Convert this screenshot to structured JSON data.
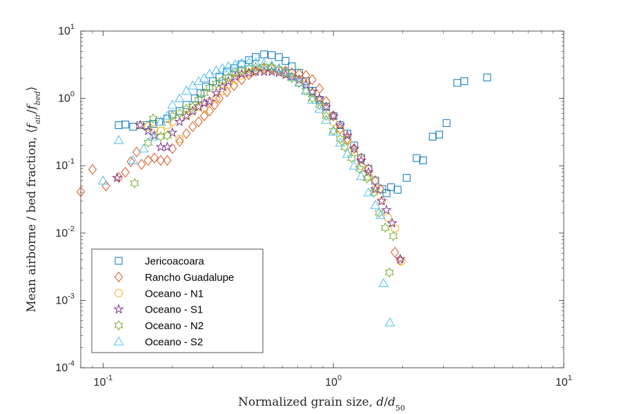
{
  "chart_data": {
    "type": "scatter",
    "title": "",
    "xlabel": "Normalized grain size, d/d50",
    "ylabel": "Mean airborne / bed fraction, ⟨f_air/f_bed⟩",
    "xscale": "log",
    "yscale": "log",
    "xlim": [
      0.08,
      10
    ],
    "ylim": [
      0.0001,
      10
    ],
    "xticks": [
      {
        "value": 0.1,
        "mantissa": "10",
        "exp": "-1"
      },
      {
        "value": 1,
        "mantissa": "10",
        "exp": "0"
      },
      {
        "value": 10,
        "mantissa": "10",
        "exp": "1"
      }
    ],
    "yticks": [
      {
        "value": 0.0001,
        "mantissa": "10",
        "exp": "-4"
      },
      {
        "value": 0.001,
        "mantissa": "10",
        "exp": "-3"
      },
      {
        "value": 0.01,
        "mantissa": "10",
        "exp": "-2"
      },
      {
        "value": 0.1,
        "mantissa": "10",
        "exp": "-1"
      },
      {
        "value": 1,
        "mantissa": "10",
        "exp": "0"
      },
      {
        "value": 10,
        "mantissa": "10",
        "exp": "1"
      }
    ],
    "grid": false,
    "legend_position": "bottom-left",
    "series": [
      {
        "name": "Jericoacoara",
        "marker": "square",
        "color": "#0072BD",
        "points": [
          [
            0.117,
            0.4
          ],
          [
            0.125,
            0.41
          ],
          [
            0.135,
            0.38
          ],
          [
            0.145,
            0.4
          ],
          [
            0.155,
            0.4
          ],
          [
            0.165,
            0.42
          ],
          [
            0.175,
            0.45
          ],
          [
            0.19,
            0.5
          ],
          [
            0.2,
            0.58
          ],
          [
            0.215,
            0.65
          ],
          [
            0.23,
            0.8
          ],
          [
            0.25,
            1.0
          ],
          [
            0.265,
            1.2
          ],
          [
            0.28,
            1.5
          ],
          [
            0.3,
            1.8
          ],
          [
            0.32,
            2.1
          ],
          [
            0.345,
            2.5
          ],
          [
            0.37,
            2.8
          ],
          [
            0.4,
            3.2
          ],
          [
            0.43,
            3.7
          ],
          [
            0.46,
            4.1
          ],
          [
            0.5,
            4.5
          ],
          [
            0.54,
            4.4
          ],
          [
            0.58,
            4.1
          ],
          [
            0.62,
            3.6
          ],
          [
            0.66,
            3.0
          ],
          [
            0.71,
            2.4
          ],
          [
            0.76,
            1.8
          ],
          [
            0.81,
            1.3
          ],
          [
            0.87,
            0.95
          ],
          [
            0.93,
            0.75
          ],
          [
            1.0,
            0.55
          ],
          [
            1.07,
            0.4
          ],
          [
            1.15,
            0.3
          ],
          [
            1.23,
            0.2
          ],
          [
            1.32,
            0.13
          ],
          [
            1.42,
            0.09
          ],
          [
            1.52,
            0.06
          ],
          [
            1.63,
            0.045
          ],
          [
            1.7,
            0.039
          ],
          [
            1.78,
            0.048
          ],
          [
            1.9,
            0.044
          ],
          [
            2.08,
            0.066
          ],
          [
            2.3,
            0.13
          ],
          [
            2.45,
            0.12
          ],
          [
            2.7,
            0.27
          ],
          [
            2.88,
            0.29
          ],
          [
            3.1,
            0.43
          ],
          [
            3.45,
            1.7
          ],
          [
            3.7,
            1.8
          ],
          [
            4.65,
            2.05
          ]
        ]
      },
      {
        "name": "Rancho Guadalupe",
        "marker": "diamond",
        "color": "#D95319",
        "points": [
          [
            0.08,
            0.041
          ],
          [
            0.09,
            0.088
          ],
          [
            0.103,
            0.05
          ],
          [
            0.117,
            0.067
          ],
          [
            0.125,
            0.08
          ],
          [
            0.132,
            0.115
          ],
          [
            0.14,
            0.16
          ],
          [
            0.147,
            0.105
          ],
          [
            0.157,
            0.12
          ],
          [
            0.167,
            0.13
          ],
          [
            0.178,
            0.12
          ],
          [
            0.19,
            0.12
          ],
          [
            0.2,
            0.18
          ],
          [
            0.215,
            0.23
          ],
          [
            0.23,
            0.3
          ],
          [
            0.245,
            0.38
          ],
          [
            0.26,
            0.45
          ],
          [
            0.275,
            0.55
          ],
          [
            0.29,
            0.65
          ],
          [
            0.305,
            0.8
          ],
          [
            0.32,
            1.0
          ],
          [
            0.345,
            1.25
          ],
          [
            0.37,
            1.55
          ],
          [
            0.4,
            1.9
          ],
          [
            0.43,
            2.25
          ],
          [
            0.46,
            2.55
          ],
          [
            0.5,
            2.75
          ],
          [
            0.54,
            2.8
          ],
          [
            0.58,
            2.7
          ],
          [
            0.62,
            2.55
          ],
          [
            0.66,
            2.4
          ],
          [
            0.71,
            2.3
          ],
          [
            0.76,
            2.2
          ],
          [
            0.81,
            1.9
          ],
          [
            0.87,
            1.4
          ],
          [
            0.93,
            0.9
          ],
          [
            1.0,
            0.55
          ],
          [
            1.07,
            0.35
          ],
          [
            1.15,
            0.25
          ],
          [
            1.23,
            0.18
          ],
          [
            1.32,
            0.13
          ],
          [
            1.42,
            0.09
          ],
          [
            1.52,
            0.06
          ],
          [
            1.6,
            0.045
          ],
          [
            1.85,
            0.0052
          ],
          [
            1.95,
            0.004
          ]
        ]
      },
      {
        "name": "Oceano - N1",
        "marker": "circle",
        "color": "#EDB120",
        "points": [
          [
            0.145,
            0.4
          ],
          [
            0.157,
            0.38
          ],
          [
            0.167,
            0.35
          ],
          [
            0.178,
            0.33
          ],
          [
            0.19,
            0.4
          ],
          [
            0.2,
            0.45
          ],
          [
            0.215,
            0.25
          ],
          [
            0.23,
            0.55
          ],
          [
            0.245,
            0.65
          ],
          [
            0.26,
            0.75
          ],
          [
            0.275,
            0.7
          ],
          [
            0.29,
            0.9
          ],
          [
            0.31,
            1.0
          ],
          [
            0.33,
            1.3
          ],
          [
            0.35,
            1.6
          ],
          [
            0.375,
            1.9
          ],
          [
            0.4,
            2.2
          ],
          [
            0.43,
            2.4
          ],
          [
            0.46,
            2.6
          ],
          [
            0.5,
            2.7
          ],
          [
            0.54,
            2.7
          ],
          [
            0.58,
            2.55
          ],
          [
            0.62,
            2.3
          ],
          [
            0.66,
            2.1
          ],
          [
            0.71,
            1.9
          ],
          [
            0.76,
            1.6
          ],
          [
            0.81,
            1.2
          ],
          [
            0.87,
            0.9
          ],
          [
            0.93,
            0.6
          ],
          [
            1.0,
            0.45
          ],
          [
            1.07,
            0.35
          ],
          [
            1.15,
            0.24
          ],
          [
            1.23,
            0.16
          ],
          [
            1.32,
            0.1
          ],
          [
            1.42,
            0.07
          ],
          [
            1.52,
            0.045
          ],
          [
            1.62,
            0.03
          ],
          [
            1.72,
            0.017
          ],
          [
            1.85,
            0.0117
          ],
          [
            1.97,
            0.0038
          ]
        ]
      },
      {
        "name": "Oceano - S1",
        "marker": "star",
        "color": "#7E2F8E",
        "points": [
          [
            0.115,
            0.066
          ],
          [
            0.145,
            0.4
          ],
          [
            0.157,
            0.33
          ],
          [
            0.167,
            0.28
          ],
          [
            0.178,
            0.19
          ],
          [
            0.19,
            0.19
          ],
          [
            0.2,
            0.31
          ],
          [
            0.215,
            0.45
          ],
          [
            0.23,
            0.55
          ],
          [
            0.245,
            0.65
          ],
          [
            0.26,
            0.75
          ],
          [
            0.275,
            0.85
          ],
          [
            0.29,
            0.9
          ],
          [
            0.31,
            1.2
          ],
          [
            0.33,
            1.5
          ],
          [
            0.35,
            1.8
          ],
          [
            0.375,
            2.1
          ],
          [
            0.4,
            2.3
          ],
          [
            0.43,
            2.4
          ],
          [
            0.46,
            2.5
          ],
          [
            0.5,
            2.5
          ],
          [
            0.54,
            2.5
          ],
          [
            0.58,
            2.4
          ],
          [
            0.62,
            2.25
          ],
          [
            0.66,
            2.1
          ],
          [
            0.71,
            1.9
          ],
          [
            0.76,
            1.6
          ],
          [
            0.81,
            1.25
          ],
          [
            0.87,
            1.0
          ],
          [
            0.93,
            0.75
          ],
          [
            1.0,
            0.55
          ],
          [
            1.07,
            0.4
          ],
          [
            1.15,
            0.28
          ],
          [
            1.23,
            0.18
          ],
          [
            1.32,
            0.12
          ],
          [
            1.42,
            0.08
          ],
          [
            1.52,
            0.045
          ],
          [
            1.62,
            0.03
          ],
          [
            1.7,
            0.022
          ],
          [
            1.8,
            0.014
          ],
          [
            1.95,
            0.0041
          ]
        ]
      },
      {
        "name": "Oceano - N2",
        "marker": "hexagram",
        "color": "#77AC30",
        "points": [
          [
            0.137,
            0.055
          ],
          [
            0.157,
            0.22
          ],
          [
            0.165,
            0.5
          ],
          [
            0.178,
            0.27
          ],
          [
            0.19,
            0.28
          ],
          [
            0.2,
            0.55
          ],
          [
            0.215,
            0.6
          ],
          [
            0.23,
            0.7
          ],
          [
            0.245,
            0.75
          ],
          [
            0.26,
            0.95
          ],
          [
            0.275,
            1.2
          ],
          [
            0.29,
            1.45
          ],
          [
            0.31,
            1.65
          ],
          [
            0.33,
            1.85
          ],
          [
            0.35,
            2.05
          ],
          [
            0.375,
            2.4
          ],
          [
            0.4,
            2.6
          ],
          [
            0.43,
            2.8
          ],
          [
            0.46,
            2.9
          ],
          [
            0.5,
            2.95
          ],
          [
            0.54,
            2.9
          ],
          [
            0.58,
            2.7
          ],
          [
            0.62,
            2.4
          ],
          [
            0.66,
            2.0
          ],
          [
            0.71,
            1.7
          ],
          [
            0.76,
            1.3
          ],
          [
            0.81,
            1.0
          ],
          [
            0.87,
            0.8
          ],
          [
            0.93,
            0.55
          ],
          [
            1.0,
            0.33
          ],
          [
            1.07,
            0.25
          ],
          [
            1.12,
            0.19
          ],
          [
            1.2,
            0.13
          ],
          [
            1.3,
            0.09
          ],
          [
            1.4,
            0.065
          ],
          [
            1.5,
            0.04
          ],
          [
            1.58,
            0.02
          ],
          [
            1.68,
            0.012
          ],
          [
            1.82,
            0.009
          ],
          [
            1.75,
            0.0026
          ]
        ]
      },
      {
        "name": "Oceano - S2",
        "marker": "triangle",
        "color": "#4DBEEE",
        "points": [
          [
            0.1,
            0.06
          ],
          [
            0.117,
            0.24
          ],
          [
            0.135,
            0.12
          ],
          [
            0.15,
            0.18
          ],
          [
            0.165,
            0.27
          ],
          [
            0.178,
            0.45
          ],
          [
            0.19,
            0.55
          ],
          [
            0.2,
            0.8
          ],
          [
            0.215,
            1.0
          ],
          [
            0.23,
            1.3
          ],
          [
            0.245,
            1.55
          ],
          [
            0.26,
            1.8
          ],
          [
            0.275,
            2.0
          ],
          [
            0.29,
            2.3
          ],
          [
            0.31,
            2.6
          ],
          [
            0.33,
            2.8
          ],
          [
            0.35,
            3.0
          ],
          [
            0.375,
            3.2
          ],
          [
            0.4,
            3.35
          ],
          [
            0.43,
            3.4
          ],
          [
            0.46,
            3.4
          ],
          [
            0.5,
            3.3
          ],
          [
            0.54,
            3.1
          ],
          [
            0.58,
            2.8
          ],
          [
            0.62,
            2.5
          ],
          [
            0.66,
            2.1
          ],
          [
            0.71,
            1.7
          ],
          [
            0.76,
            1.3
          ],
          [
            0.81,
            0.95
          ],
          [
            0.87,
            0.7
          ],
          [
            0.93,
            0.48
          ],
          [
            1.0,
            0.32
          ],
          [
            1.07,
            0.22
          ],
          [
            1.15,
            0.15
          ],
          [
            1.23,
            0.1
          ],
          [
            1.32,
            0.07
          ],
          [
            1.42,
            0.04
          ],
          [
            1.52,
            0.026
          ],
          [
            1.6,
            0.0185
          ],
          [
            1.65,
            0.0018
          ],
          [
            1.76,
            0.00047
          ]
        ]
      }
    ]
  }
}
